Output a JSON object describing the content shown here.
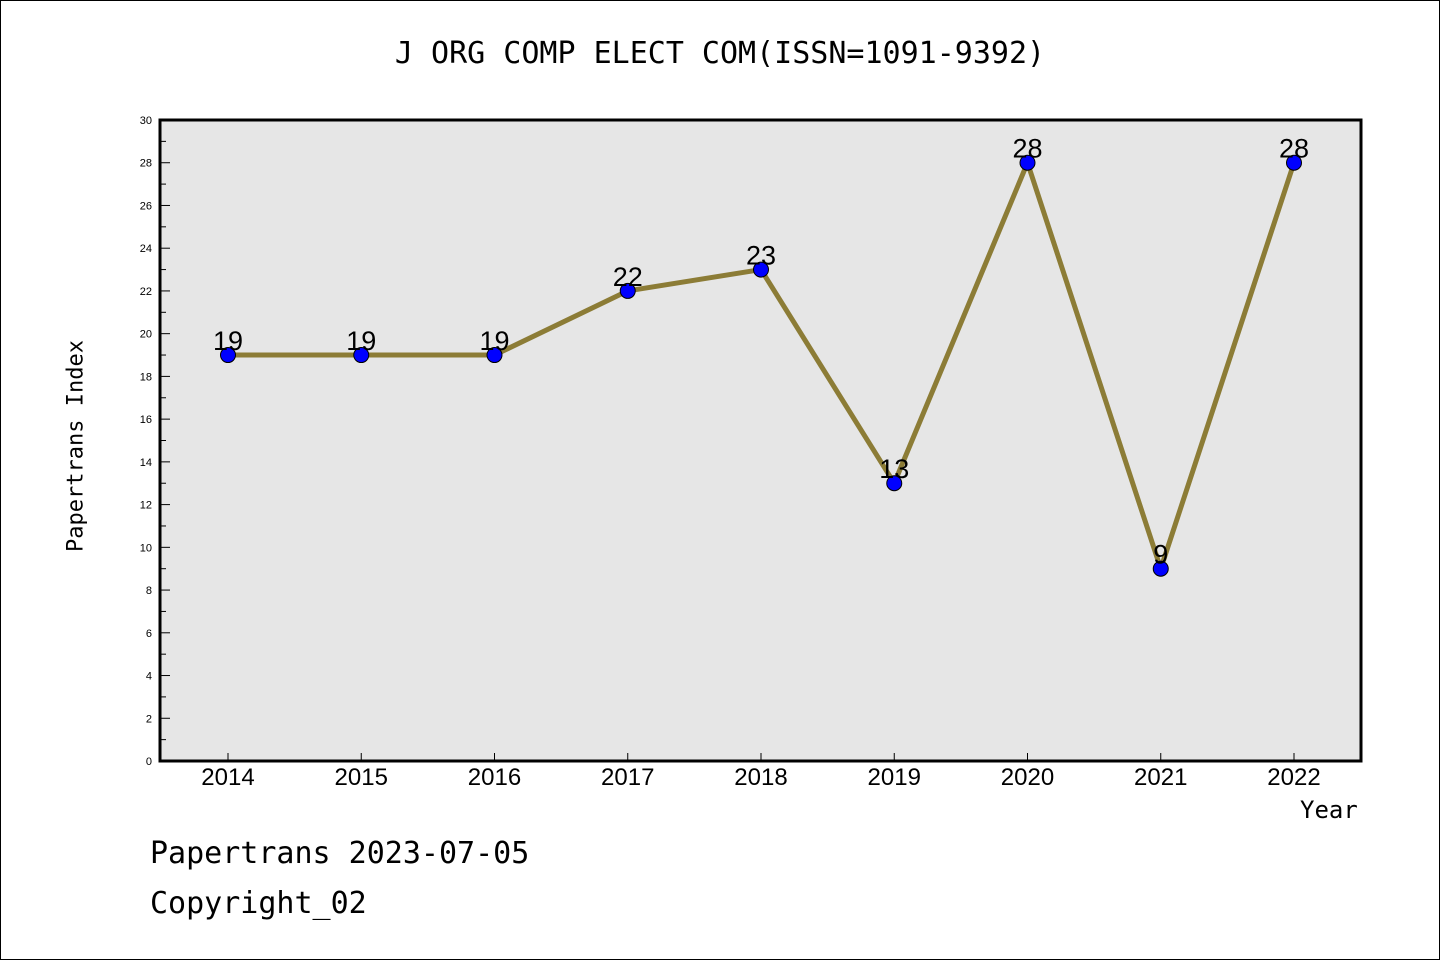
{
  "chart_data": {
    "type": "line",
    "title": "J ORG COMP ELECT COM(ISSN=1091-9392)",
    "xlabel": "Year",
    "ylabel": "Papertrans Index",
    "categories": [
      "2014",
      "2015",
      "2016",
      "2017",
      "2018",
      "2019",
      "2020",
      "2021",
      "2022"
    ],
    "series": [
      {
        "values": [
          19,
          19,
          19,
          22,
          23,
          13,
          28,
          9,
          28
        ]
      }
    ],
    "data_labels": [
      "19",
      "19",
      "19",
      "22",
      "23",
      "13",
      "28",
      "9",
      "28"
    ],
    "ylim": [
      0,
      30
    ],
    "yticks": [
      "0",
      "2",
      "4",
      "6",
      "8",
      "10",
      "12",
      "14",
      "16",
      "18",
      "20",
      "22",
      "24",
      "26",
      "28",
      "30"
    ],
    "grid": false,
    "legend": "none"
  },
  "footer": {
    "line1": "Papertrans 2023-07-05",
    "line2": "Copyright_02"
  },
  "colors": {
    "plot_background": "#e6e6e6",
    "line": "#8c7c36",
    "marker": "#0000ff"
  }
}
